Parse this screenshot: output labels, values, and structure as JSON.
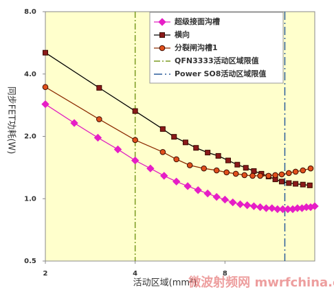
{
  "chart_data": {
    "type": "line",
    "xlabel": "活动区域(mm²)",
    "ylabel": "同步FET功耗(W)",
    "xscale": "log",
    "yscale": "log",
    "xlim": [
      2,
      16
    ],
    "xticks": [
      2,
      4,
      8
    ],
    "ylim": [
      0.5,
      8
    ],
    "yticks": [
      {
        "value": 0.5,
        "label": "0.5"
      },
      {
        "value": 1,
        "label": "1.0"
      },
      {
        "value": 2,
        "label": "2.0"
      },
      {
        "value": 4,
        "label": "4.0"
      },
      {
        "value": 8,
        "label": "8.0"
      }
    ],
    "grid": false,
    "legend": "top-right",
    "series": [
      {
        "name": "超级接面沟槽",
        "color": "#e61ec6",
        "line_color": "#e020c0",
        "marker": "diamond",
        "x": [
          2,
          2.5,
          3,
          3.5,
          4,
          4.5,
          5,
          5.5,
          6,
          6.5,
          7,
          7.5,
          8,
          8.5,
          9,
          9.5,
          10,
          10.5,
          11,
          11.5,
          12,
          12.5,
          13,
          13.5,
          14,
          14.5,
          15,
          15.5,
          16
        ],
        "values": [
          2.86,
          2.32,
          1.97,
          1.73,
          1.53,
          1.4,
          1.29,
          1.21,
          1.15,
          1.1,
          1.06,
          1.02,
          0.99,
          0.96,
          0.94,
          0.93,
          0.92,
          0.91,
          0.9,
          0.9,
          0.89,
          0.89,
          0.89,
          0.89,
          0.9,
          0.9,
          0.91,
          0.91,
          0.92
        ]
      },
      {
        "name": "横向",
        "color": "#8b1a1a",
        "line_color": "#000000",
        "marker": "square",
        "x": [
          2,
          3.03,
          4,
          4.95,
          5.4,
          5.9,
          6.4,
          7,
          7.6,
          8.2,
          8.8,
          9.4,
          10,
          10.6,
          11.2,
          11.8,
          12.4,
          13.1,
          13.8,
          14.6,
          15.4
        ],
        "values": [
          5.07,
          3.43,
          2.65,
          2.17,
          1.99,
          1.87,
          1.76,
          1.67,
          1.61,
          1.53,
          1.46,
          1.41,
          1.36,
          1.32,
          1.28,
          1.24,
          1.21,
          1.19,
          1.18,
          1.17,
          1.16
        ]
      },
      {
        "name": "分裂闸沟槽1",
        "color": "#e0501c",
        "line_color": "#8b2a00",
        "marker": "circle",
        "x": [
          2,
          3.03,
          4,
          4.95,
          5.5,
          6.1,
          6.8,
          7.5,
          8.1,
          8.7,
          9.3,
          9.9,
          10.5,
          11.2,
          11.8,
          12.4,
          13.1,
          13.8,
          14.6,
          15.5
        ],
        "values": [
          3.46,
          2.42,
          1.92,
          1.68,
          1.55,
          1.45,
          1.4,
          1.37,
          1.34,
          1.32,
          1.3,
          1.29,
          1.29,
          1.29,
          1.3,
          1.31,
          1.33,
          1.35,
          1.37,
          1.4
        ]
      }
    ],
    "reference_lines": [
      {
        "name": "QFN3333活动区域限值",
        "x": 4,
        "color": "#7a9a20",
        "dash": "9,3,2,3"
      },
      {
        "name": "Power SO8活动区域限值",
        "x": 12.7,
        "color": "#2a5c9a",
        "dash": "12,4,2,4"
      }
    ],
    "watermark": "微波射频网 mwrfchina.com"
  }
}
